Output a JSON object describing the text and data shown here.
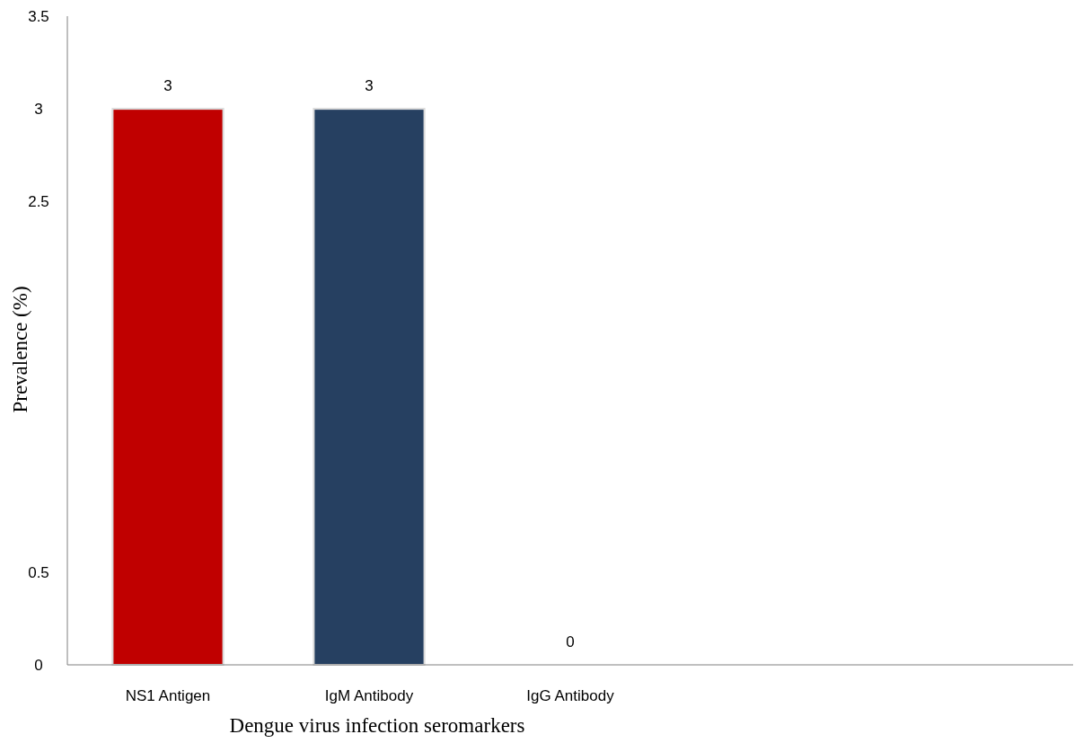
{
  "chart_data": {
    "type": "bar",
    "xlabel": "Dengue virus infection seromarkers",
    "ylabel": "Prevalence (%)",
    "categories": [
      "NS1 Antigen",
      "IgM Antibody",
      "IgG Antibody",
      null,
      null
    ],
    "values": [
      3,
      3,
      0,
      null,
      null
    ],
    "colors": [
      "#c00000",
      "#264061",
      "#4f81bd",
      null,
      null
    ],
    "ylim": [
      0,
      3.5
    ],
    "yticks": [
      0,
      0.5,
      2.5,
      3,
      3.5
    ],
    "data_labels": true
  }
}
